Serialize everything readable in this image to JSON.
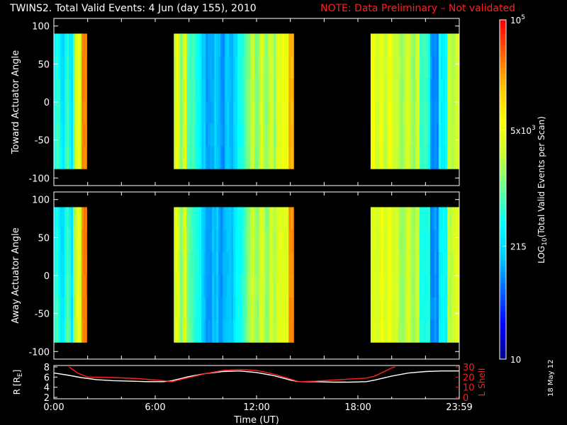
{
  "header": {
    "title": "TWINS2. Total Valid Events:  4 Jun (day 155), 2010",
    "note": "NOTE: Data Preliminary – Not validated"
  },
  "footer": {
    "date_stamp": "18 May 12"
  },
  "colors": {
    "background": "#000000",
    "note": "#ff2020",
    "axes": "#ffffff",
    "lshell_line": "#ff2020",
    "r_line": "#ffffff"
  },
  "colorbar": {
    "label": "LOG10(Total Valid Events per Scan)",
    "label_main": "LOG",
    "label_sub": "10",
    "label_rest": "(Total Valid Events per Scan)",
    "scale": "log",
    "min": 10,
    "max": 100000,
    "ticks": [
      {
        "value": 100000,
        "text": "10",
        "sup": "5"
      },
      {
        "value": 5000,
        "text": "5x10",
        "sup": "3"
      },
      {
        "value": 215,
        "text": "215",
        "sup": ""
      },
      {
        "value": 10,
        "text": "10",
        "sup": ""
      }
    ],
    "palette": [
      "#00008c",
      "#0000ff",
      "#0064ff",
      "#00c8ff",
      "#00ffff",
      "#64ff96",
      "#c8ff32",
      "#ffff00",
      "#ffc800",
      "#ff6400",
      "#ff0000"
    ]
  },
  "chart_data": [
    {
      "type": "heatmap",
      "id": "toward",
      "title": "",
      "ylabel": "Toward Actuator Angle",
      "xlabel": "",
      "xlim": [
        0,
        24
      ],
      "ylim": [
        -110,
        110
      ],
      "yticks": [
        100,
        50,
        0,
        -50,
        -100
      ],
      "data_y_range": [
        -88,
        90
      ],
      "data_blocks": [
        {
          "start": 0.0,
          "end": 1.95,
          "profile": "a"
        },
        {
          "start": 7.1,
          "end": 14.2,
          "profile": "b"
        },
        {
          "start": 18.75,
          "end": 24.0,
          "profile": "c"
        }
      ]
    },
    {
      "type": "heatmap",
      "id": "away",
      "title": "",
      "ylabel": "Away Actuator Angle",
      "xlabel": "",
      "xlim": [
        0,
        24
      ],
      "ylim": [
        -110,
        110
      ],
      "yticks": [
        100,
        50,
        0,
        -50,
        -100
      ],
      "data_y_range": [
        -88,
        90
      ],
      "data_blocks": [
        {
          "start": 0.0,
          "end": 1.95,
          "profile": "a"
        },
        {
          "start": 7.1,
          "end": 14.2,
          "profile": "b"
        },
        {
          "start": 18.75,
          "end": 24.0,
          "profile": "c"
        }
      ]
    },
    {
      "type": "line",
      "id": "orbit",
      "title": "",
      "xlabel": "Time (UT)",
      "ylabel_left": "R [R",
      "ylabel_left_sub": "E",
      "ylabel_left_end": "]",
      "ylabel_right": "L Shell",
      "xlim": [
        0,
        24
      ],
      "xticks": [
        {
          "value": 0,
          "label": "0:00"
        },
        {
          "value": 6,
          "label": "6:00"
        },
        {
          "value": 12,
          "label": "12:00"
        },
        {
          "value": 18,
          "label": "18:00"
        },
        {
          "value": 24,
          "label": "23:59"
        }
      ],
      "y_left_lim": [
        2,
        8
      ],
      "y_left_ticks": [
        8,
        6,
        4,
        2
      ],
      "y_right_lim": [
        0,
        30
      ],
      "y_right_ticks": [
        30,
        20,
        10,
        0
      ],
      "series": [
        {
          "axis": "left",
          "x": [
            0,
            0.8,
            1.6,
            2.5,
            3.5,
            4.5,
            5.5,
            6.5,
            7.0,
            8.0,
            9.0,
            10.0,
            11.0,
            12.0,
            13.0,
            14.0,
            14.5,
            15.5,
            16.5,
            17.5,
            18.5,
            19.0,
            20.0,
            21.0,
            22.0,
            23.0,
            24.0
          ],
          "y": [
            6.8,
            6.4,
            5.9,
            5.5,
            5.3,
            5.2,
            5.1,
            5.1,
            5.3,
            6.1,
            6.7,
            7.1,
            7.2,
            6.9,
            6.3,
            5.4,
            5.1,
            5.1,
            5.0,
            5.0,
            5.1,
            5.4,
            6.2,
            6.8,
            7.1,
            7.2,
            7.2
          ]
        },
        {
          "axis": "right",
          "x": [
            0.9,
            1.4,
            2.0,
            3.5,
            5.0,
            6.5,
            7.0,
            8.0,
            9.0,
            10.0,
            11.0,
            12.0,
            13.0,
            14.0,
            14.5,
            15.5,
            16.5,
            17.5,
            18.5,
            19.0,
            19.5,
            20.0,
            20.2
          ],
          "y": [
            30,
            24,
            20,
            19.5,
            18.5,
            16.5,
            15.5,
            19.5,
            23.5,
            26.5,
            27.5,
            26.5,
            23,
            18,
            15.5,
            16,
            17,
            18,
            19,
            21,
            25,
            29,
            30
          ]
        }
      ]
    }
  ]
}
